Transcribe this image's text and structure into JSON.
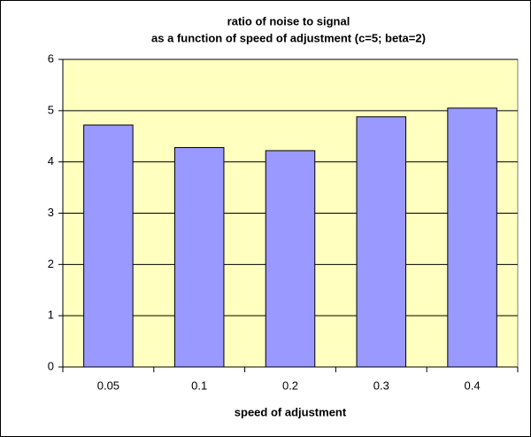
{
  "chart_data": {
    "type": "bar",
    "title": [
      "ratio of noise to signal",
      "as a function of speed of adjustment (c=5; beta=2)"
    ],
    "x_label": "speed of adjustment",
    "categories": [
      "0.05",
      "0.1",
      "0.2",
      "0.3",
      "0.4"
    ],
    "values": [
      4.72,
      4.28,
      4.22,
      4.88,
      5.05
    ],
    "color": "#9999ff",
    "ylim": [
      0,
      6
    ],
    "yticks": [
      0,
      1,
      2,
      3,
      4,
      5,
      6
    ],
    "grid": true
  }
}
